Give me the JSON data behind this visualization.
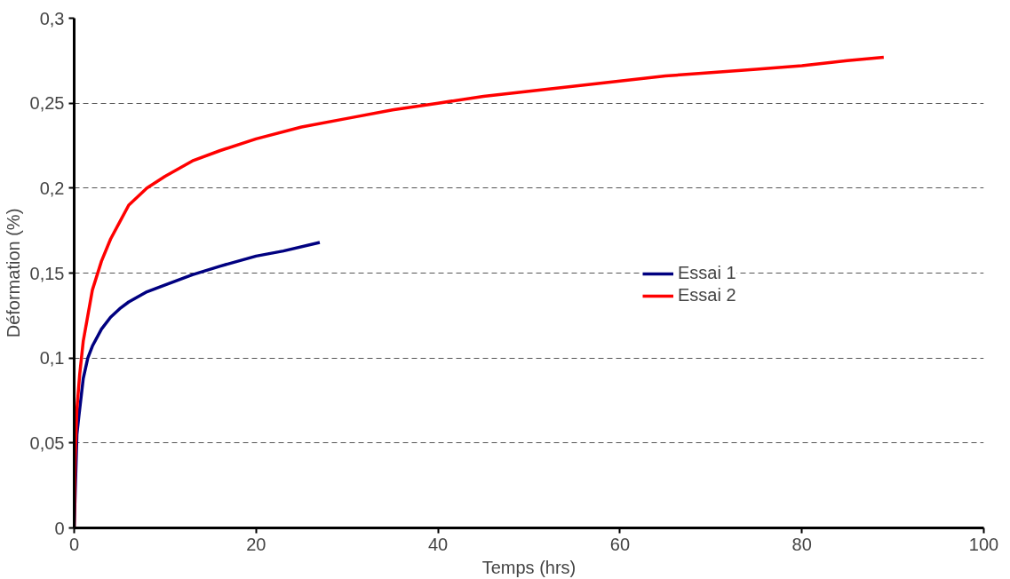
{
  "chart_data": {
    "type": "line",
    "xlabel": "Temps (hrs)",
    "ylabel": "Déformation (%)",
    "xlim": [
      0,
      100
    ],
    "xticks": [
      0,
      20,
      40,
      60,
      80,
      100
    ],
    "ylim": [
      0,
      0.3
    ],
    "yticks": [
      {
        "value": 0,
        "label": "0"
      },
      {
        "value": 0.05,
        "label": "0,05"
      },
      {
        "value": 0.1,
        "label": "0,1"
      },
      {
        "value": 0.15,
        "label": "0,15"
      },
      {
        "value": 0.2,
        "label": "0,2"
      },
      {
        "value": 0.25,
        "label": "0,25"
      },
      {
        "value": 0.3,
        "label": "0,3"
      }
    ],
    "grid": "y",
    "legend": "right",
    "marker": "none",
    "line_style": "solid",
    "series": [
      {
        "name": "Essai 1",
        "color": "#000080",
        "x": [
          0,
          0.3,
          0.5,
          1,
          1.5,
          2,
          3,
          4,
          5,
          6,
          8,
          10,
          13,
          16,
          20,
          23,
          27
        ],
        "values": [
          0,
          0.055,
          0.065,
          0.088,
          0.1,
          0.107,
          0.117,
          0.124,
          0.129,
          0.133,
          0.139,
          0.143,
          0.149,
          0.154,
          0.16,
          0.163,
          0.168
        ]
      },
      {
        "name": "Essai 2",
        "color": "#ff0000",
        "x": [
          0,
          0.1,
          0.3,
          0.6,
          1,
          1.5,
          2,
          3,
          4,
          5,
          6,
          8,
          10,
          13,
          16,
          20,
          25,
          30,
          35,
          40,
          45,
          50,
          55,
          60,
          65,
          70,
          75,
          80,
          85,
          89
        ],
        "values": [
          0,
          0.04,
          0.07,
          0.09,
          0.11,
          0.125,
          0.14,
          0.157,
          0.17,
          0.18,
          0.19,
          0.2,
          0.207,
          0.216,
          0.222,
          0.229,
          0.236,
          0.241,
          0.246,
          0.25,
          0.254,
          0.257,
          0.26,
          0.263,
          0.266,
          0.268,
          0.27,
          0.272,
          0.275,
          0.277
        ]
      }
    ]
  }
}
